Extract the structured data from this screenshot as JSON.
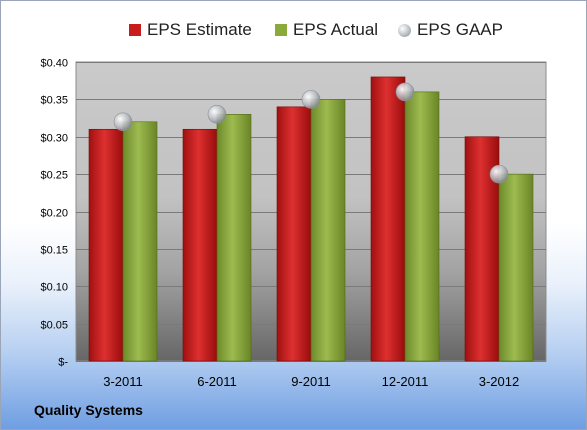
{
  "footer": {
    "company": "Quality Systems"
  },
  "chart_data": {
    "type": "bar",
    "categories": [
      "3-2011",
      "6-2011",
      "9-2011",
      "12-2011",
      "3-2012"
    ],
    "series": [
      {
        "name": "EPS Estimate",
        "kind": "bar",
        "color": "#c81d1d",
        "values": [
          0.31,
          0.31,
          0.34,
          0.38,
          0.3
        ]
      },
      {
        "name": "EPS Actual",
        "kind": "bar",
        "color": "#8aab3c",
        "values": [
          0.32,
          0.33,
          0.35,
          0.36,
          0.25
        ]
      },
      {
        "name": "EPS GAAP",
        "kind": "marker",
        "color": "#b9bcc2",
        "values": [
          0.32,
          0.33,
          0.35,
          0.36,
          0.25
        ]
      }
    ],
    "yticks": [
      "$-",
      "$0.05",
      "$0.10",
      "$0.15",
      "$0.20",
      "$0.25",
      "$0.30",
      "$0.35",
      "$0.40"
    ],
    "ylim": [
      0,
      0.4
    ],
    "grid": true,
    "legend_position": "top"
  }
}
